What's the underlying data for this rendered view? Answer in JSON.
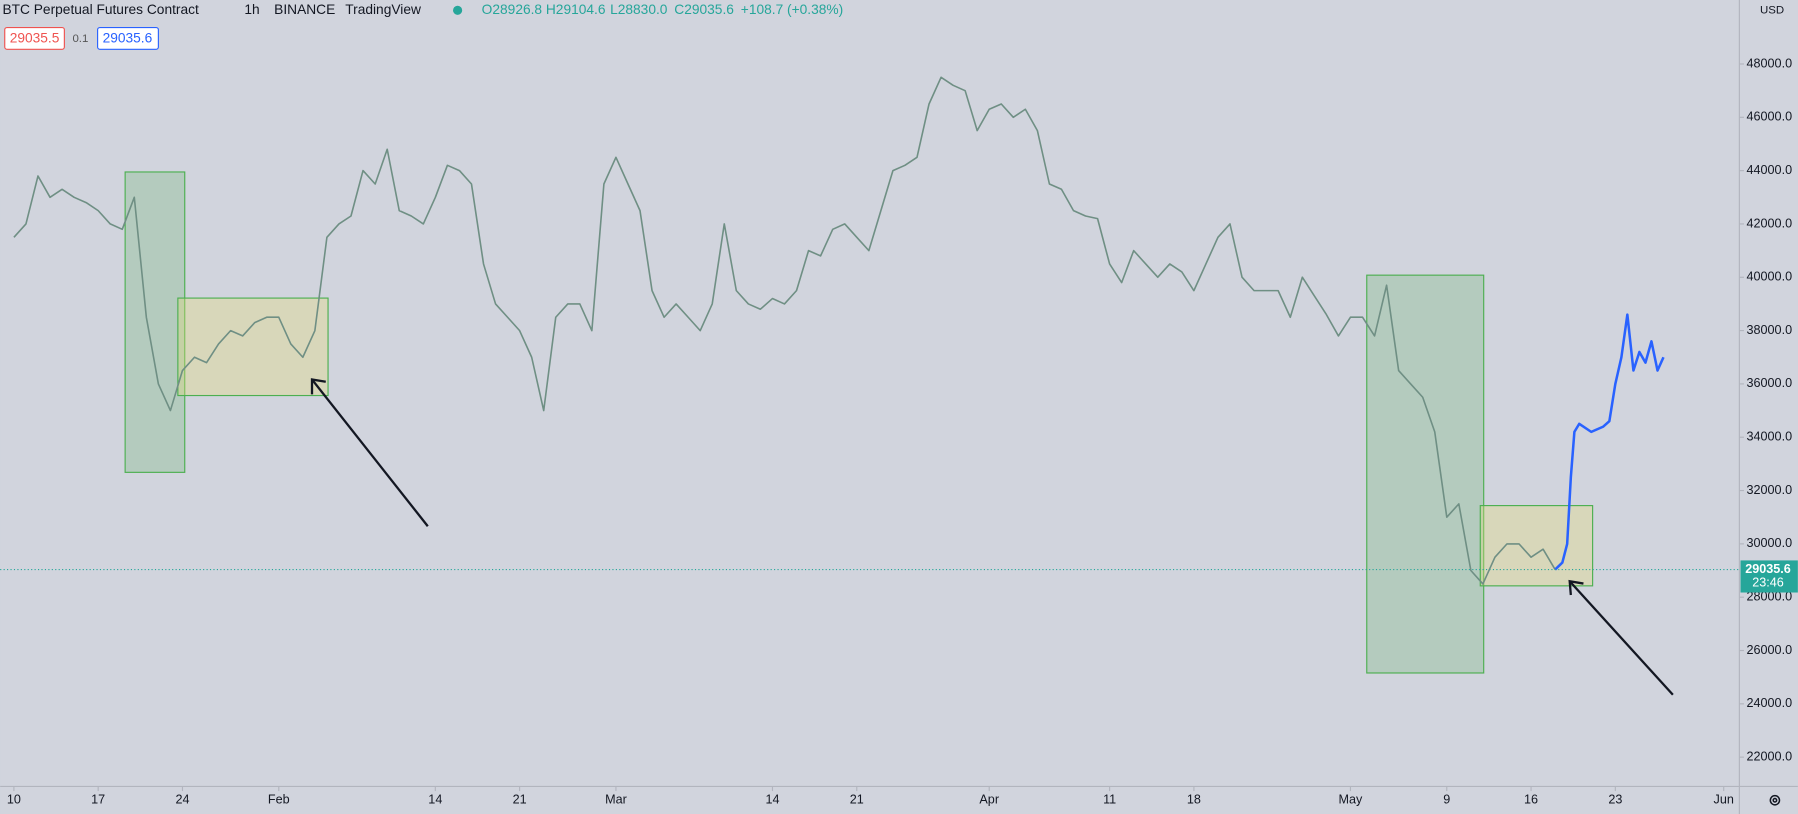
{
  "header": {
    "symbol": "BTC Perpetual Futures Contract",
    "interval": "1h",
    "exchange": "BINANCE",
    "source": "TradingView",
    "open": "O28926.8",
    "high": "H29104.6",
    "low": "L28830.0",
    "close": "C29035.6",
    "change": "+108.7 (+0.38%)",
    "sell": "29035.5",
    "spread": "0.1",
    "buy": "29035.6",
    "currency": "USD"
  },
  "chart_data": {
    "type": "line",
    "series": [
      {
        "color": "#6f8f84",
        "x": [
          0,
          1,
          2,
          3,
          4,
          5,
          6,
          7,
          8,
          9,
          10,
          11,
          12,
          13,
          14,
          15,
          16,
          17,
          18,
          19,
          20,
          21,
          22,
          23,
          24,
          25,
          26,
          27,
          28,
          29,
          30,
          31,
          32,
          33,
          34,
          35,
          36,
          37,
          38,
          39,
          40,
          41,
          42,
          43,
          44,
          45,
          46,
          47,
          48,
          49,
          50,
          51,
          52,
          53,
          54,
          55,
          56,
          57,
          58,
          59,
          60,
          61,
          62,
          63,
          64,
          65,
          66,
          67,
          68,
          69,
          70,
          71,
          72,
          73,
          74,
          75,
          76,
          77,
          78,
          79,
          80,
          81,
          82,
          83,
          84,
          85,
          86,
          87,
          88,
          89,
          90,
          91,
          92,
          93,
          94,
          95,
          96,
          97,
          98,
          99,
          100,
          101,
          102,
          103,
          104,
          105,
          106,
          107,
          108,
          109,
          110,
          111,
          112,
          113,
          114,
          115,
          116,
          117,
          118,
          119,
          120,
          121,
          122,
          123,
          124,
          125,
          126,
          127,
          128
        ],
        "values": [
          41500,
          42000,
          43800,
          43000,
          43300,
          43000,
          42800,
          42500,
          42000,
          41800,
          43000,
          38500,
          36000,
          35000,
          36500,
          37000,
          36800,
          37500,
          38000,
          37800,
          38300,
          38500,
          38500,
          37500,
          37000,
          38000,
          41500,
          42000,
          42300,
          44000,
          43500,
          44800,
          42500,
          42300,
          42000,
          43000,
          44200,
          44000,
          43500,
          40500,
          39000,
          38500,
          38000,
          37000,
          35000,
          38500,
          39000,
          39000,
          38000,
          43500,
          44500,
          43500,
          42500,
          39500,
          38500,
          39000,
          38500,
          38000,
          39000,
          42000,
          39500,
          39000,
          38800,
          39200,
          39000,
          39500,
          41000,
          40800,
          41800,
          42000,
          41500,
          41000,
          42500,
          44000,
          44200,
          44500,
          46500,
          47500,
          47200,
          47000,
          45500,
          46300,
          46500,
          46000,
          46300,
          45500,
          43500,
          43300,
          42500,
          42300,
          42200,
          40500,
          39800,
          41000,
          40500,
          40000,
          40500,
          40200,
          39500,
          40500,
          41500,
          42000,
          40000,
          39500,
          39500,
          39500,
          38500,
          40000,
          39300,
          38600,
          37800,
          38500,
          38500,
          37800,
          39700,
          36500,
          36000,
          35500,
          34200,
          31000,
          31500,
          29000,
          28500,
          29500,
          30000,
          30000,
          29500,
          29800,
          29035.6
        ]
      },
      {
        "color": "#2962ff",
        "x": [
          128,
          128.6,
          129,
          129.3,
          129.6,
          130,
          131,
          132,
          132.5,
          133,
          133.5,
          134,
          134.5,
          135,
          135.5,
          136,
          136.5,
          137
        ],
        "values": [
          29035.6,
          29300,
          30000,
          32500,
          34200,
          34500,
          34200,
          34400,
          34600,
          36000,
          37000,
          38600,
          36500,
          37200,
          36800,
          37600,
          36500,
          37000
        ]
      }
    ],
    "xlim": [
      -1.14,
      143.3
    ],
    "ylim": [
      20900,
      50400
    ],
    "xticks": [
      {
        "value": 0,
        "label": "10"
      },
      {
        "value": 7,
        "label": "17"
      },
      {
        "value": 14,
        "label": "24"
      },
      {
        "value": 22,
        "label": "Feb"
      },
      {
        "value": 35,
        "label": "14"
      },
      {
        "value": 42,
        "label": "21"
      },
      {
        "value": 50,
        "label": "Mar"
      },
      {
        "value": 63,
        "label": "14"
      },
      {
        "value": 70,
        "label": "21"
      },
      {
        "value": 81,
        "label": "Apr"
      },
      {
        "value": 91,
        "label": "11"
      },
      {
        "value": 98,
        "label": "18"
      },
      {
        "value": 111,
        "label": "May"
      },
      {
        "value": 119,
        "label": "9"
      },
      {
        "value": 126,
        "label": "16"
      },
      {
        "value": 133,
        "label": "23"
      },
      {
        "value": 142,
        "label": "Jun"
      }
    ],
    "yticks": [
      {
        "value": 22000,
        "label": "22000.0"
      },
      {
        "value": 24000,
        "label": "24000.0"
      },
      {
        "value": 26000,
        "label": "26000.0"
      },
      {
        "value": 28000,
        "label": "28000.0"
      },
      {
        "value": 30000,
        "label": "30000.0"
      },
      {
        "value": 32000,
        "label": "32000.0"
      },
      {
        "value": 34000,
        "label": "34000.0"
      },
      {
        "value": 36000,
        "label": "36000.0"
      },
      {
        "value": 38000,
        "label": "38000.0"
      },
      {
        "value": 40000,
        "label": "40000.0"
      },
      {
        "value": 42000,
        "label": "42000.0"
      },
      {
        "value": 44000,
        "label": "44000.0"
      },
      {
        "value": 46000,
        "label": "46000.0"
      },
      {
        "value": 48000,
        "label": "48000.0"
      }
    ],
    "last_price": {
      "value": 29035.6,
      "label": "29035.6",
      "countdown": "23:46"
    }
  }
}
